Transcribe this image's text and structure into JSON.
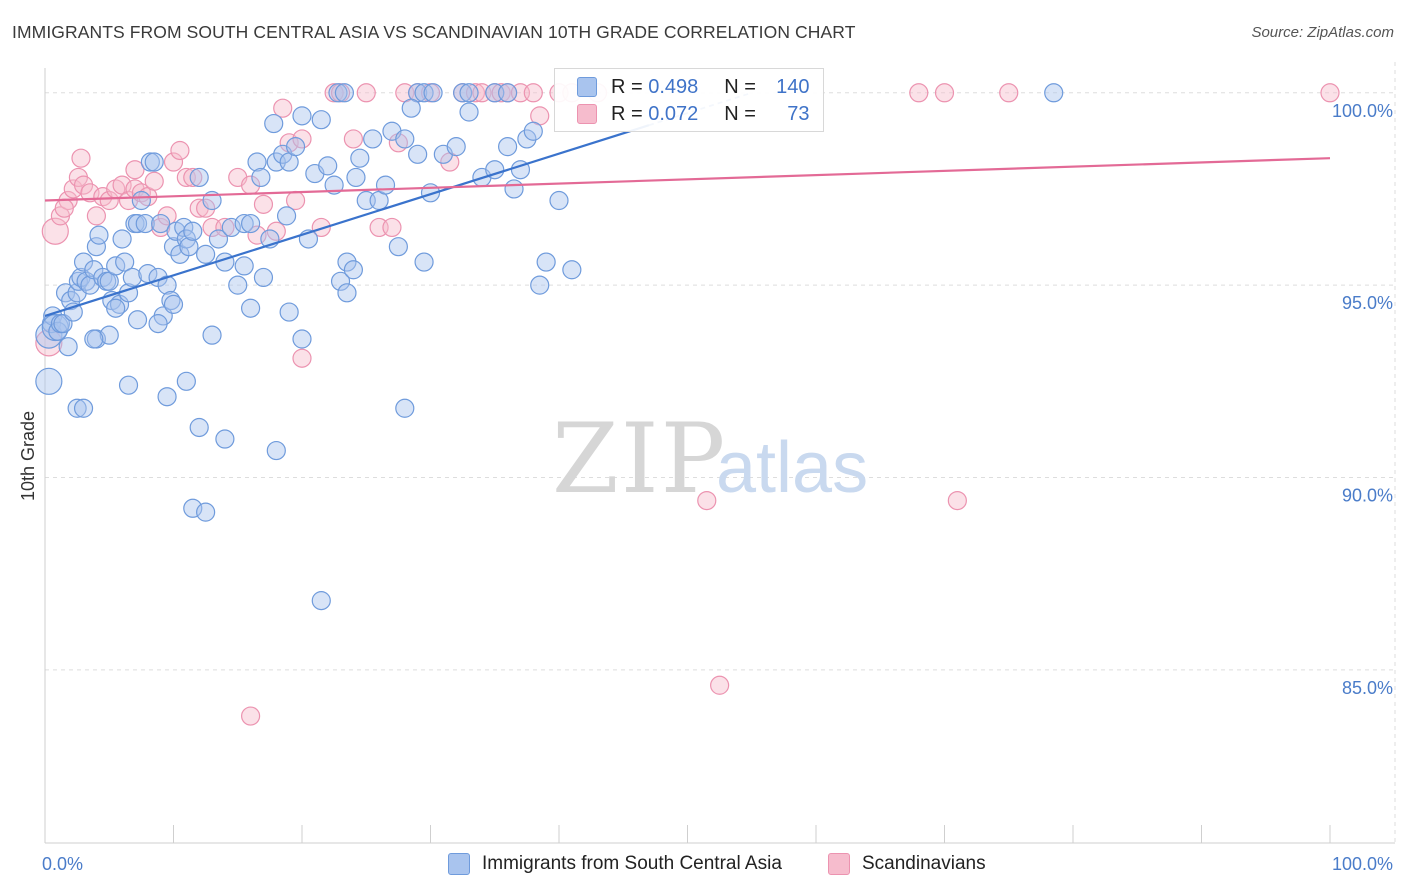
{
  "title": "IMMIGRANTS FROM SOUTH CENTRAL ASIA VS SCANDINAVIAN 10TH GRADE CORRELATION CHART",
  "source": "Source: ZipAtlas.com",
  "watermark": {
    "zip": "ZIP",
    "atlas": "atlas"
  },
  "colors": {
    "blue_fill": "#a9c4ee",
    "blue_stroke": "#6f9bdc",
    "blue_line": "#3a73cc",
    "pink_fill": "#f6bccd",
    "pink_stroke": "#ec93b0",
    "pink_line": "#e36a96",
    "tick_text": "#4a7cc9",
    "grid": "#dddddd"
  },
  "legend": {
    "rows": [
      {
        "r_label": "R = ",
        "r_value": "0.498",
        "n_label": "N = ",
        "n_value": "140"
      },
      {
        "r_label": "R = ",
        "r_value": "0.072",
        "n_label": "N = ",
        "n_value": "73"
      }
    ]
  },
  "bottom_legend": [
    {
      "label": "Immigrants from South Central Asia"
    },
    {
      "label": "Scandinavians"
    }
  ],
  "chart_data": {
    "type": "scatter",
    "title": "IMMIGRANTS FROM SOUTH CENTRAL ASIA VS SCANDINAVIAN 10TH GRADE CORRELATION CHART",
    "xlabel": "",
    "ylabel": "10th Grade",
    "xlim": [
      0,
      100
    ],
    "ylim": [
      80.5,
      100.8
    ],
    "y_ticks": [
      {
        "value": 100,
        "label": "100.0%"
      },
      {
        "value": 95,
        "label": "95.0%"
      },
      {
        "value": 90,
        "label": "90.0%"
      },
      {
        "value": 85,
        "label": "85.0%"
      }
    ],
    "x_tick_labels": [
      {
        "value": 0,
        "label": "0.0%"
      },
      {
        "value": 100,
        "label": "100.0%"
      }
    ],
    "grid": true,
    "series": [
      {
        "name": "Immigrants from South Central Asia",
        "color": "blue",
        "trendline": {
          "x": [
            0,
            55
          ],
          "y": [
            94.2,
            100.0
          ],
          "style": "solid-then-dashed",
          "solid_until_x": 47
        },
        "points": [
          [
            0.3,
            93.7
          ],
          [
            0.5,
            94.0
          ],
          [
            0.6,
            94.2
          ],
          [
            0.8,
            93.9
          ],
          [
            1.0,
            93.8
          ],
          [
            1.2,
            94.0
          ],
          [
            1.4,
            94.0
          ],
          [
            1.6,
            94.8
          ],
          [
            1.8,
            93.4
          ],
          [
            0.3,
            92.5
          ],
          [
            2.0,
            94.6
          ],
          [
            2.2,
            94.3
          ],
          [
            2.5,
            94.8
          ],
          [
            2.6,
            95.1
          ],
          [
            2.8,
            95.2
          ],
          [
            3.0,
            95.6
          ],
          [
            3.2,
            95.1
          ],
          [
            3.5,
            95.0
          ],
          [
            3.8,
            95.4
          ],
          [
            4.0,
            96.0
          ],
          [
            4.2,
            96.3
          ],
          [
            4.5,
            95.2
          ],
          [
            4.8,
            95.1
          ],
          [
            5.0,
            95.1
          ],
          [
            5.2,
            94.6
          ],
          [
            5.5,
            95.5
          ],
          [
            5.8,
            94.5
          ],
          [
            6.0,
            96.2
          ],
          [
            6.2,
            95.6
          ],
          [
            6.5,
            94.8
          ],
          [
            6.8,
            95.2
          ],
          [
            7.0,
            96.6
          ],
          [
            7.2,
            96.6
          ],
          [
            7.5,
            97.2
          ],
          [
            7.8,
            96.6
          ],
          [
            8.0,
            95.3
          ],
          [
            8.2,
            98.2
          ],
          [
            8.5,
            98.2
          ],
          [
            8.8,
            95.2
          ],
          [
            9.0,
            96.6
          ],
          [
            9.2,
            94.2
          ],
          [
            9.5,
            95.0
          ],
          [
            9.8,
            94.6
          ],
          [
            10.0,
            96.0
          ],
          [
            10.2,
            96.4
          ],
          [
            10.5,
            95.8
          ],
          [
            10.8,
            96.5
          ],
          [
            11.0,
            96.2
          ],
          [
            11.2,
            96.0
          ],
          [
            11.5,
            96.4
          ],
          [
            12.0,
            97.8
          ],
          [
            12.5,
            95.8
          ],
          [
            13.0,
            97.2
          ],
          [
            13.5,
            96.2
          ],
          [
            14.0,
            95.6
          ],
          [
            14.5,
            96.5
          ],
          [
            15.0,
            95.0
          ],
          [
            15.5,
            96.6
          ],
          [
            16.0,
            96.6
          ],
          [
            16.5,
            98.2
          ],
          [
            17.0,
            95.2
          ],
          [
            17.5,
            96.2
          ],
          [
            18.0,
            98.2
          ],
          [
            18.5,
            98.4
          ],
          [
            19.0,
            98.2
          ],
          [
            19.5,
            98.6
          ],
          [
            20.0,
            99.4
          ],
          [
            20.5,
            96.2
          ],
          [
            21.0,
            97.9
          ],
          [
            21.5,
            99.3
          ],
          [
            22.0,
            98.1
          ],
          [
            22.5,
            97.6
          ],
          [
            23.0,
            95.1
          ],
          [
            23.5,
            95.6
          ],
          [
            24.0,
            95.4
          ],
          [
            24.5,
            98.3
          ],
          [
            25.0,
            97.2
          ],
          [
            25.5,
            98.8
          ],
          [
            26.0,
            97.2
          ],
          [
            26.5,
            97.6
          ],
          [
            27.0,
            99.0
          ],
          [
            27.5,
            96.0
          ],
          [
            28.0,
            98.8
          ],
          [
            29.0,
            98.4
          ],
          [
            29.5,
            95.6
          ],
          [
            30.0,
            97.4
          ],
          [
            31.0,
            98.4
          ],
          [
            32.0,
            98.6
          ],
          [
            33.0,
            99.5
          ],
          [
            34.0,
            97.8
          ],
          [
            35.0,
            98.0
          ],
          [
            36.0,
            98.6
          ],
          [
            36.5,
            97.5
          ],
          [
            37.0,
            98.0
          ],
          [
            37.5,
            98.8
          ],
          [
            38.0,
            99.0
          ],
          [
            38.5,
            95.0
          ],
          [
            39.0,
            95.6
          ],
          [
            40.0,
            97.2
          ],
          [
            41.0,
            95.4
          ],
          [
            2.5,
            91.8
          ],
          [
            3.0,
            91.8
          ],
          [
            4.0,
            93.6
          ],
          [
            5.0,
            93.7
          ],
          [
            6.5,
            92.4
          ],
          [
            9.5,
            92.1
          ],
          [
            10.0,
            94.5
          ],
          [
            11.0,
            92.5
          ],
          [
            12.0,
            91.3
          ],
          [
            13.0,
            93.7
          ],
          [
            14.0,
            91.0
          ],
          [
            16.0,
            94.4
          ],
          [
            18.0,
            90.7
          ],
          [
            20.0,
            93.6
          ],
          [
            21.5,
            86.8
          ],
          [
            28.0,
            91.8
          ],
          [
            11.5,
            89.2
          ],
          [
            12.5,
            89.1
          ],
          [
            19.0,
            94.3
          ],
          [
            23.5,
            94.8
          ],
          [
            3.8,
            93.6
          ],
          [
            5.5,
            94.4
          ],
          [
            7.2,
            94.1
          ],
          [
            8.8,
            94.0
          ],
          [
            15.5,
            95.5
          ],
          [
            16.8,
            97.8
          ],
          [
            18.8,
            96.8
          ],
          [
            24.2,
            97.8
          ],
          [
            17.8,
            99.2
          ],
          [
            22.8,
            100.0
          ],
          [
            23.3,
            100.0
          ],
          [
            29.0,
            100.0
          ],
          [
            29.5,
            100.0
          ],
          [
            30.2,
            100.0
          ],
          [
            32.5,
            100.0
          ],
          [
            33.0,
            100.0
          ],
          [
            35.0,
            100.0
          ],
          [
            36.0,
            100.0
          ],
          [
            78.5,
            100.0
          ],
          [
            28.5,
            99.6
          ]
        ]
      },
      {
        "name": "Scandinavians",
        "color": "pink",
        "trendline": {
          "x": [
            0,
            100
          ],
          "y": [
            97.2,
            98.3
          ],
          "style": "solid"
        },
        "points": [
          [
            0.3,
            93.5
          ],
          [
            0.8,
            96.4
          ],
          [
            1.2,
            96.8
          ],
          [
            1.8,
            97.2
          ],
          [
            2.2,
            97.5
          ],
          [
            2.6,
            97.8
          ],
          [
            3.0,
            97.6
          ],
          [
            3.5,
            97.4
          ],
          [
            4.0,
            96.8
          ],
          [
            4.5,
            97.3
          ],
          [
            5.0,
            97.2
          ],
          [
            5.5,
            97.5
          ],
          [
            6.0,
            97.6
          ],
          [
            6.5,
            97.2
          ],
          [
            7.0,
            97.5
          ],
          [
            7.5,
            97.4
          ],
          [
            8.0,
            97.3
          ],
          [
            8.5,
            97.7
          ],
          [
            9.0,
            96.5
          ],
          [
            9.5,
            96.8
          ],
          [
            10.0,
            98.2
          ],
          [
            10.5,
            98.5
          ],
          [
            11.0,
            97.8
          ],
          [
            11.5,
            97.8
          ],
          [
            12.0,
            97.0
          ],
          [
            12.5,
            97.0
          ],
          [
            13.0,
            96.5
          ],
          [
            14.0,
            96.5
          ],
          [
            15.0,
            97.8
          ],
          [
            16.0,
            97.6
          ],
          [
            16.5,
            96.3
          ],
          [
            17.0,
            97.1
          ],
          [
            18.0,
            96.4
          ],
          [
            18.5,
            99.6
          ],
          [
            19.0,
            98.7
          ],
          [
            19.5,
            97.2
          ],
          [
            20.0,
            98.8
          ],
          [
            21.5,
            96.5
          ],
          [
            22.5,
            100.0
          ],
          [
            23.0,
            100.0
          ],
          [
            24.0,
            98.8
          ],
          [
            25.0,
            100.0
          ],
          [
            26.0,
            96.5
          ],
          [
            27.0,
            96.5
          ],
          [
            27.5,
            98.7
          ],
          [
            28.0,
            100.0
          ],
          [
            29.0,
            100.0
          ],
          [
            30.0,
            100.0
          ],
          [
            31.5,
            98.2
          ],
          [
            32.5,
            100.0
          ],
          [
            33.5,
            100.0
          ],
          [
            34.0,
            100.0
          ],
          [
            35.0,
            100.0
          ],
          [
            35.5,
            100.0
          ],
          [
            36.0,
            100.0
          ],
          [
            37.0,
            100.0
          ],
          [
            38.0,
            100.0
          ],
          [
            40.0,
            100.0
          ],
          [
            41.0,
            100.0
          ],
          [
            43.0,
            100.0
          ],
          [
            68.0,
            100.0
          ],
          [
            70.0,
            100.0
          ],
          [
            75.0,
            100.0
          ],
          [
            100.0,
            100.0
          ],
          [
            20.0,
            93.1
          ],
          [
            16.0,
            83.8
          ],
          [
            51.5,
            89.4
          ],
          [
            71.0,
            89.4
          ],
          [
            52.5,
            84.6
          ],
          [
            7.0,
            98.0
          ],
          [
            2.8,
            98.3
          ],
          [
            1.5,
            97.0
          ],
          [
            38.5,
            99.4
          ]
        ]
      }
    ]
  }
}
